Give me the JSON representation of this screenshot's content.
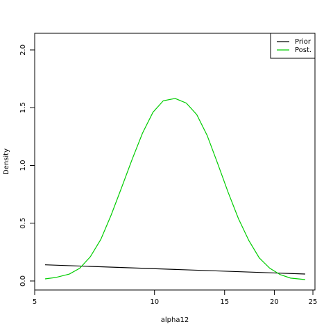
{
  "chart_data": {
    "type": "line",
    "x_label": "alpha12",
    "y_label": "Density",
    "xscale": "log",
    "xlim": [
      5,
      25.3
    ],
    "ylim": [
      -0.078,
      2.144
    ],
    "xticks": [
      5,
      10,
      15,
      20,
      25
    ],
    "yticks": [
      {
        "value": 0,
        "label": "0.0"
      },
      {
        "value": 0.5,
        "label": "0.5"
      },
      {
        "value": 1,
        "label": "1.0"
      },
      {
        "value": 1.5,
        "label": "1.5"
      },
      {
        "value": 2,
        "label": "2.0"
      }
    ],
    "legend": "top-right",
    "series": [
      {
        "name": "Prior",
        "color": "#000000",
        "x": [
          5.31,
          11.27,
          23.91
        ],
        "values": [
          0.14,
          0.1,
          0.06
        ]
      },
      {
        "name": "Post.",
        "color": "#00cd00",
        "x": [
          5.31,
          5.64,
          6.11,
          6.49,
          6.9,
          7.33,
          7.78,
          8.27,
          8.78,
          9.33,
          9.91,
          10.52,
          11.27,
          12.02,
          12.77,
          13.56,
          14.4,
          15.3,
          16.25,
          17.26,
          18.33,
          19.48,
          20.69,
          21.97,
          23.91
        ],
        "values": [
          0.018,
          0.03,
          0.06,
          0.11,
          0.21,
          0.36,
          0.57,
          0.81,
          1.05,
          1.28,
          1.46,
          1.56,
          1.58,
          1.54,
          1.44,
          1.26,
          1.02,
          0.77,
          0.54,
          0.35,
          0.2,
          0.11,
          0.055,
          0.025,
          0.012
        ]
      }
    ]
  }
}
